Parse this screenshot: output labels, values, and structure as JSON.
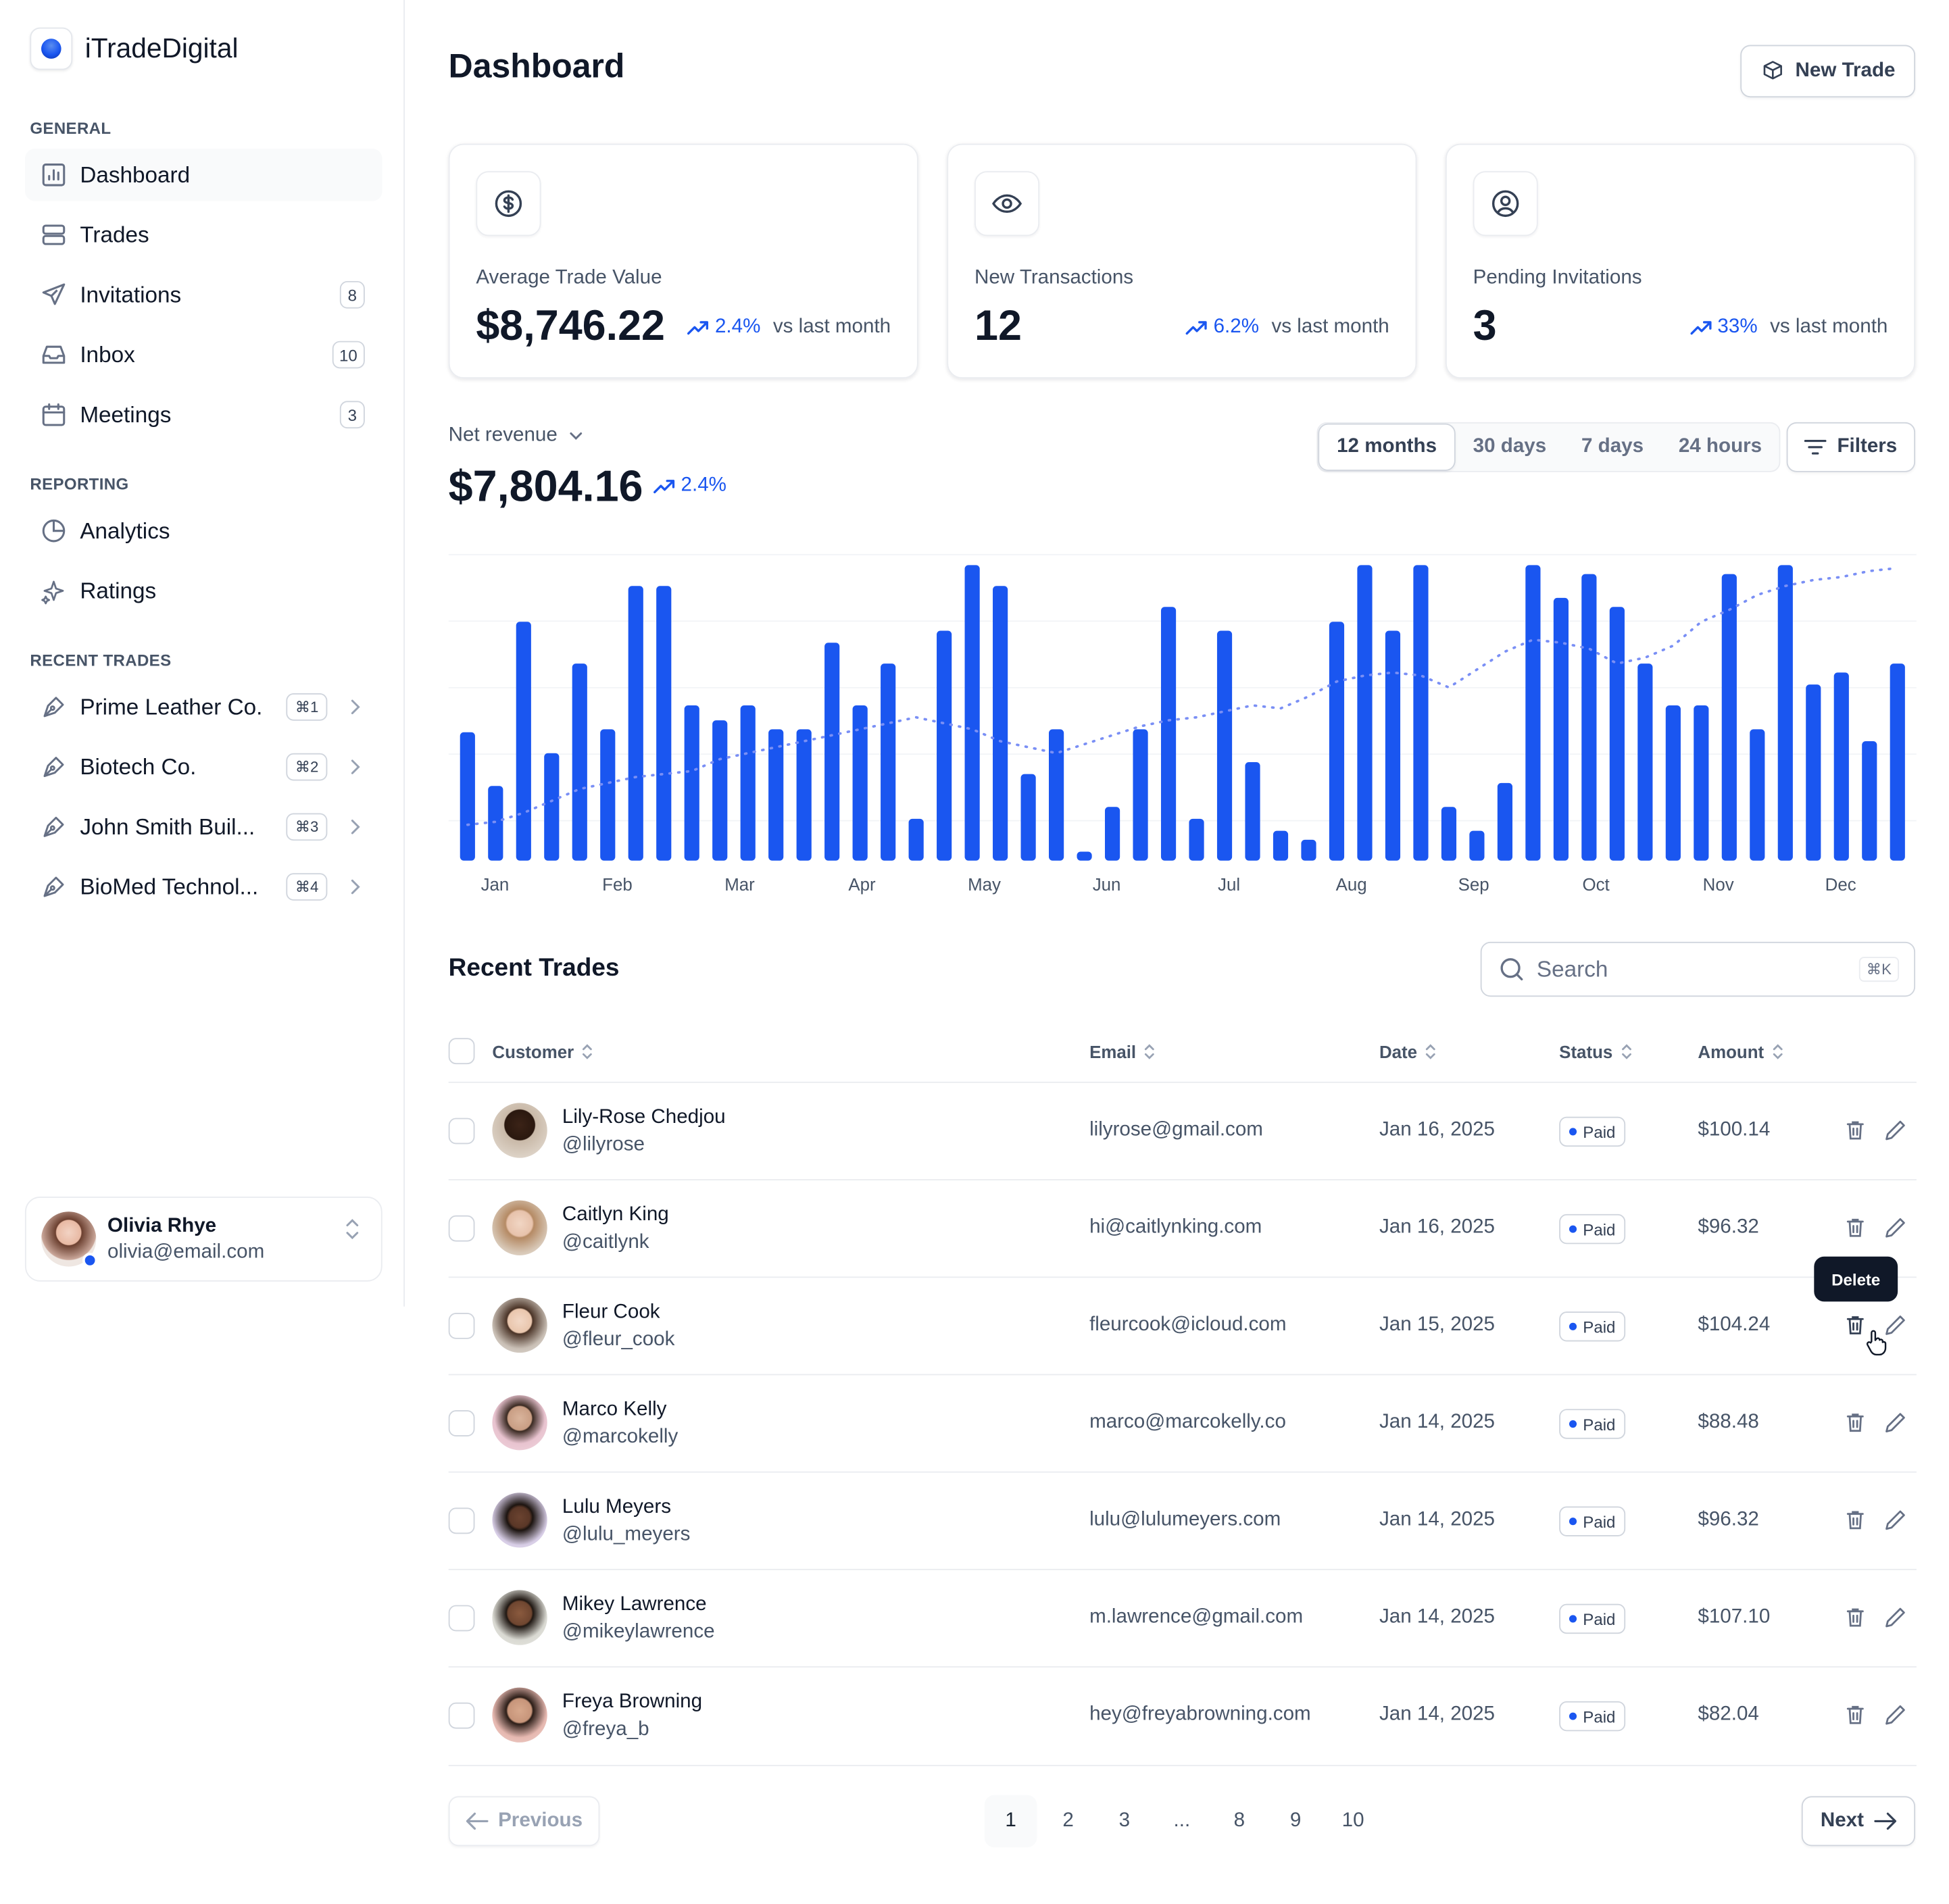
{
  "app": {
    "name": "iTradeDigital"
  },
  "colors": {
    "accent": "#1a56f0",
    "text": "#101828",
    "muted": "#475467",
    "border": "#eaecf0"
  },
  "sidebar": {
    "sections": {
      "general": "GENERAL",
      "reporting": "REPORTING",
      "recent": "RECENT TRADES"
    },
    "general": [
      {
        "label": "Dashboard",
        "icon": "bar-chart-icon",
        "active": true
      },
      {
        "label": "Trades",
        "icon": "server-icon"
      },
      {
        "label": "Invitations",
        "icon": "send-icon",
        "count": "8"
      },
      {
        "label": "Inbox",
        "icon": "inbox-icon",
        "count": "10"
      },
      {
        "label": "Meetings",
        "icon": "calendar-icon",
        "count": "3"
      }
    ],
    "reporting": [
      {
        "label": "Analytics",
        "icon": "pie-chart-icon"
      },
      {
        "label": "Ratings",
        "icon": "stars-icon"
      }
    ],
    "recent": [
      {
        "label": "Prime Leather Co.",
        "shortcut": "⌘1",
        "icon": "pen-tool-icon"
      },
      {
        "label": "Biotech Co.",
        "shortcut": "⌘2",
        "icon": "pen-tool-icon"
      },
      {
        "label": "John Smith Buil...",
        "shortcut": "⌘3",
        "icon": "pen-tool-icon"
      },
      {
        "label": "BioMed Technol...",
        "shortcut": "⌘4",
        "icon": "pen-tool-icon"
      }
    ],
    "user": {
      "name": "Olivia Rhye",
      "email": "olivia@email.com"
    }
  },
  "header": {
    "title": "Dashboard",
    "new_trade": "New Trade"
  },
  "stats": [
    {
      "label": "Average Trade Value",
      "value": "$8,746.22",
      "change": "2.4%",
      "suffix": "vs last month",
      "icon": "dollar-circle-icon"
    },
    {
      "label": "New Transactions",
      "value": "12",
      "change": "6.2%",
      "suffix": "vs last month",
      "icon": "eye-icon"
    },
    {
      "label": "Pending Invitations",
      "value": "3",
      "change": "33%",
      "suffix": "vs last month",
      "icon": "user-circle-icon"
    }
  ],
  "revenue": {
    "label": "Net revenue",
    "value": "$7,804.16",
    "change": "2.4%",
    "ranges": [
      "12 months",
      "30 days",
      "7 days",
      "24 hours"
    ],
    "selected_range": "12 months",
    "filters": "Filters"
  },
  "chart_data": {
    "type": "bar",
    "xlabels": [
      "Jan",
      "Feb",
      "Mar",
      "Apr",
      "May",
      "Jun",
      "Jul",
      "Aug",
      "Sep",
      "Oct",
      "Nov",
      "Dec"
    ],
    "values": [
      43,
      25,
      80,
      36,
      66,
      44,
      92,
      92,
      52,
      47,
      52,
      44,
      44,
      73,
      52,
      66,
      14,
      77,
      99,
      92,
      29,
      44,
      3,
      18,
      44,
      85,
      14,
      77,
      33,
      10,
      7,
      80,
      99,
      77,
      99,
      18,
      10,
      26,
      99,
      88,
      96,
      85,
      66,
      52,
      52,
      96,
      44,
      99,
      59,
      63,
      40,
      66
    ],
    "trend": [
      12,
      13,
      16,
      20,
      24,
      26,
      28,
      29,
      30,
      34,
      36,
      38,
      40,
      42,
      44,
      46,
      48,
      46,
      44,
      40,
      38,
      36,
      39,
      42,
      45,
      47,
      48,
      50,
      52,
      51,
      55,
      60,
      62,
      63,
      62,
      58,
      64,
      70,
      74,
      73,
      71,
      66,
      68,
      72,
      80,
      84,
      89,
      92,
      94,
      95,
      97,
      98
    ],
    "ylim": [
      0,
      100
    ],
    "grid": true,
    "legend": "none"
  },
  "table": {
    "title": "Recent Trades",
    "search_placeholder": "Search",
    "search_kbd": "⌘K",
    "columns": [
      "Customer",
      "Email",
      "Date",
      "Status",
      "Amount"
    ],
    "rows": [
      {
        "name": "Lily-Rose Chedjou",
        "handle": "@lilyrose",
        "email": "lilyrose@gmail.com",
        "date": "Jan 16, 2025",
        "status": "Paid",
        "amount": "$100.14"
      },
      {
        "name": "Caitlyn King",
        "handle": "@caitlynk",
        "email": "hi@caitlynking.com",
        "date": "Jan 16, 2025",
        "status": "Paid",
        "amount": "$96.32"
      },
      {
        "name": "Fleur Cook",
        "handle": "@fleur_cook",
        "email": "fleurcook@icloud.com",
        "date": "Jan 15, 2025",
        "status": "Paid",
        "amount": "$104.24"
      },
      {
        "name": "Marco Kelly",
        "handle": "@marcokelly",
        "email": "marco@marcokelly.co",
        "date": "Jan 14, 2025",
        "status": "Paid",
        "amount": "$88.48"
      },
      {
        "name": "Lulu Meyers",
        "handle": "@lulu_meyers",
        "email": "lulu@lulumeyers.com",
        "date": "Jan 14, 2025",
        "status": "Paid",
        "amount": "$96.32"
      },
      {
        "name": "Mikey Lawrence",
        "handle": "@mikeylawrence",
        "email": "m.lawrence@gmail.com",
        "date": "Jan 14, 2025",
        "status": "Paid",
        "amount": "$107.10"
      },
      {
        "name": "Freya Browning",
        "handle": "@freya_b",
        "email": "hey@freyabrowning.com",
        "date": "Jan 14, 2025",
        "status": "Paid",
        "amount": "$82.04"
      }
    ],
    "tooltip": "Delete"
  },
  "pagination": {
    "previous": "Previous",
    "next": "Next",
    "pages": [
      "1",
      "2",
      "3",
      "...",
      "8",
      "9",
      "10"
    ],
    "current": "1"
  }
}
